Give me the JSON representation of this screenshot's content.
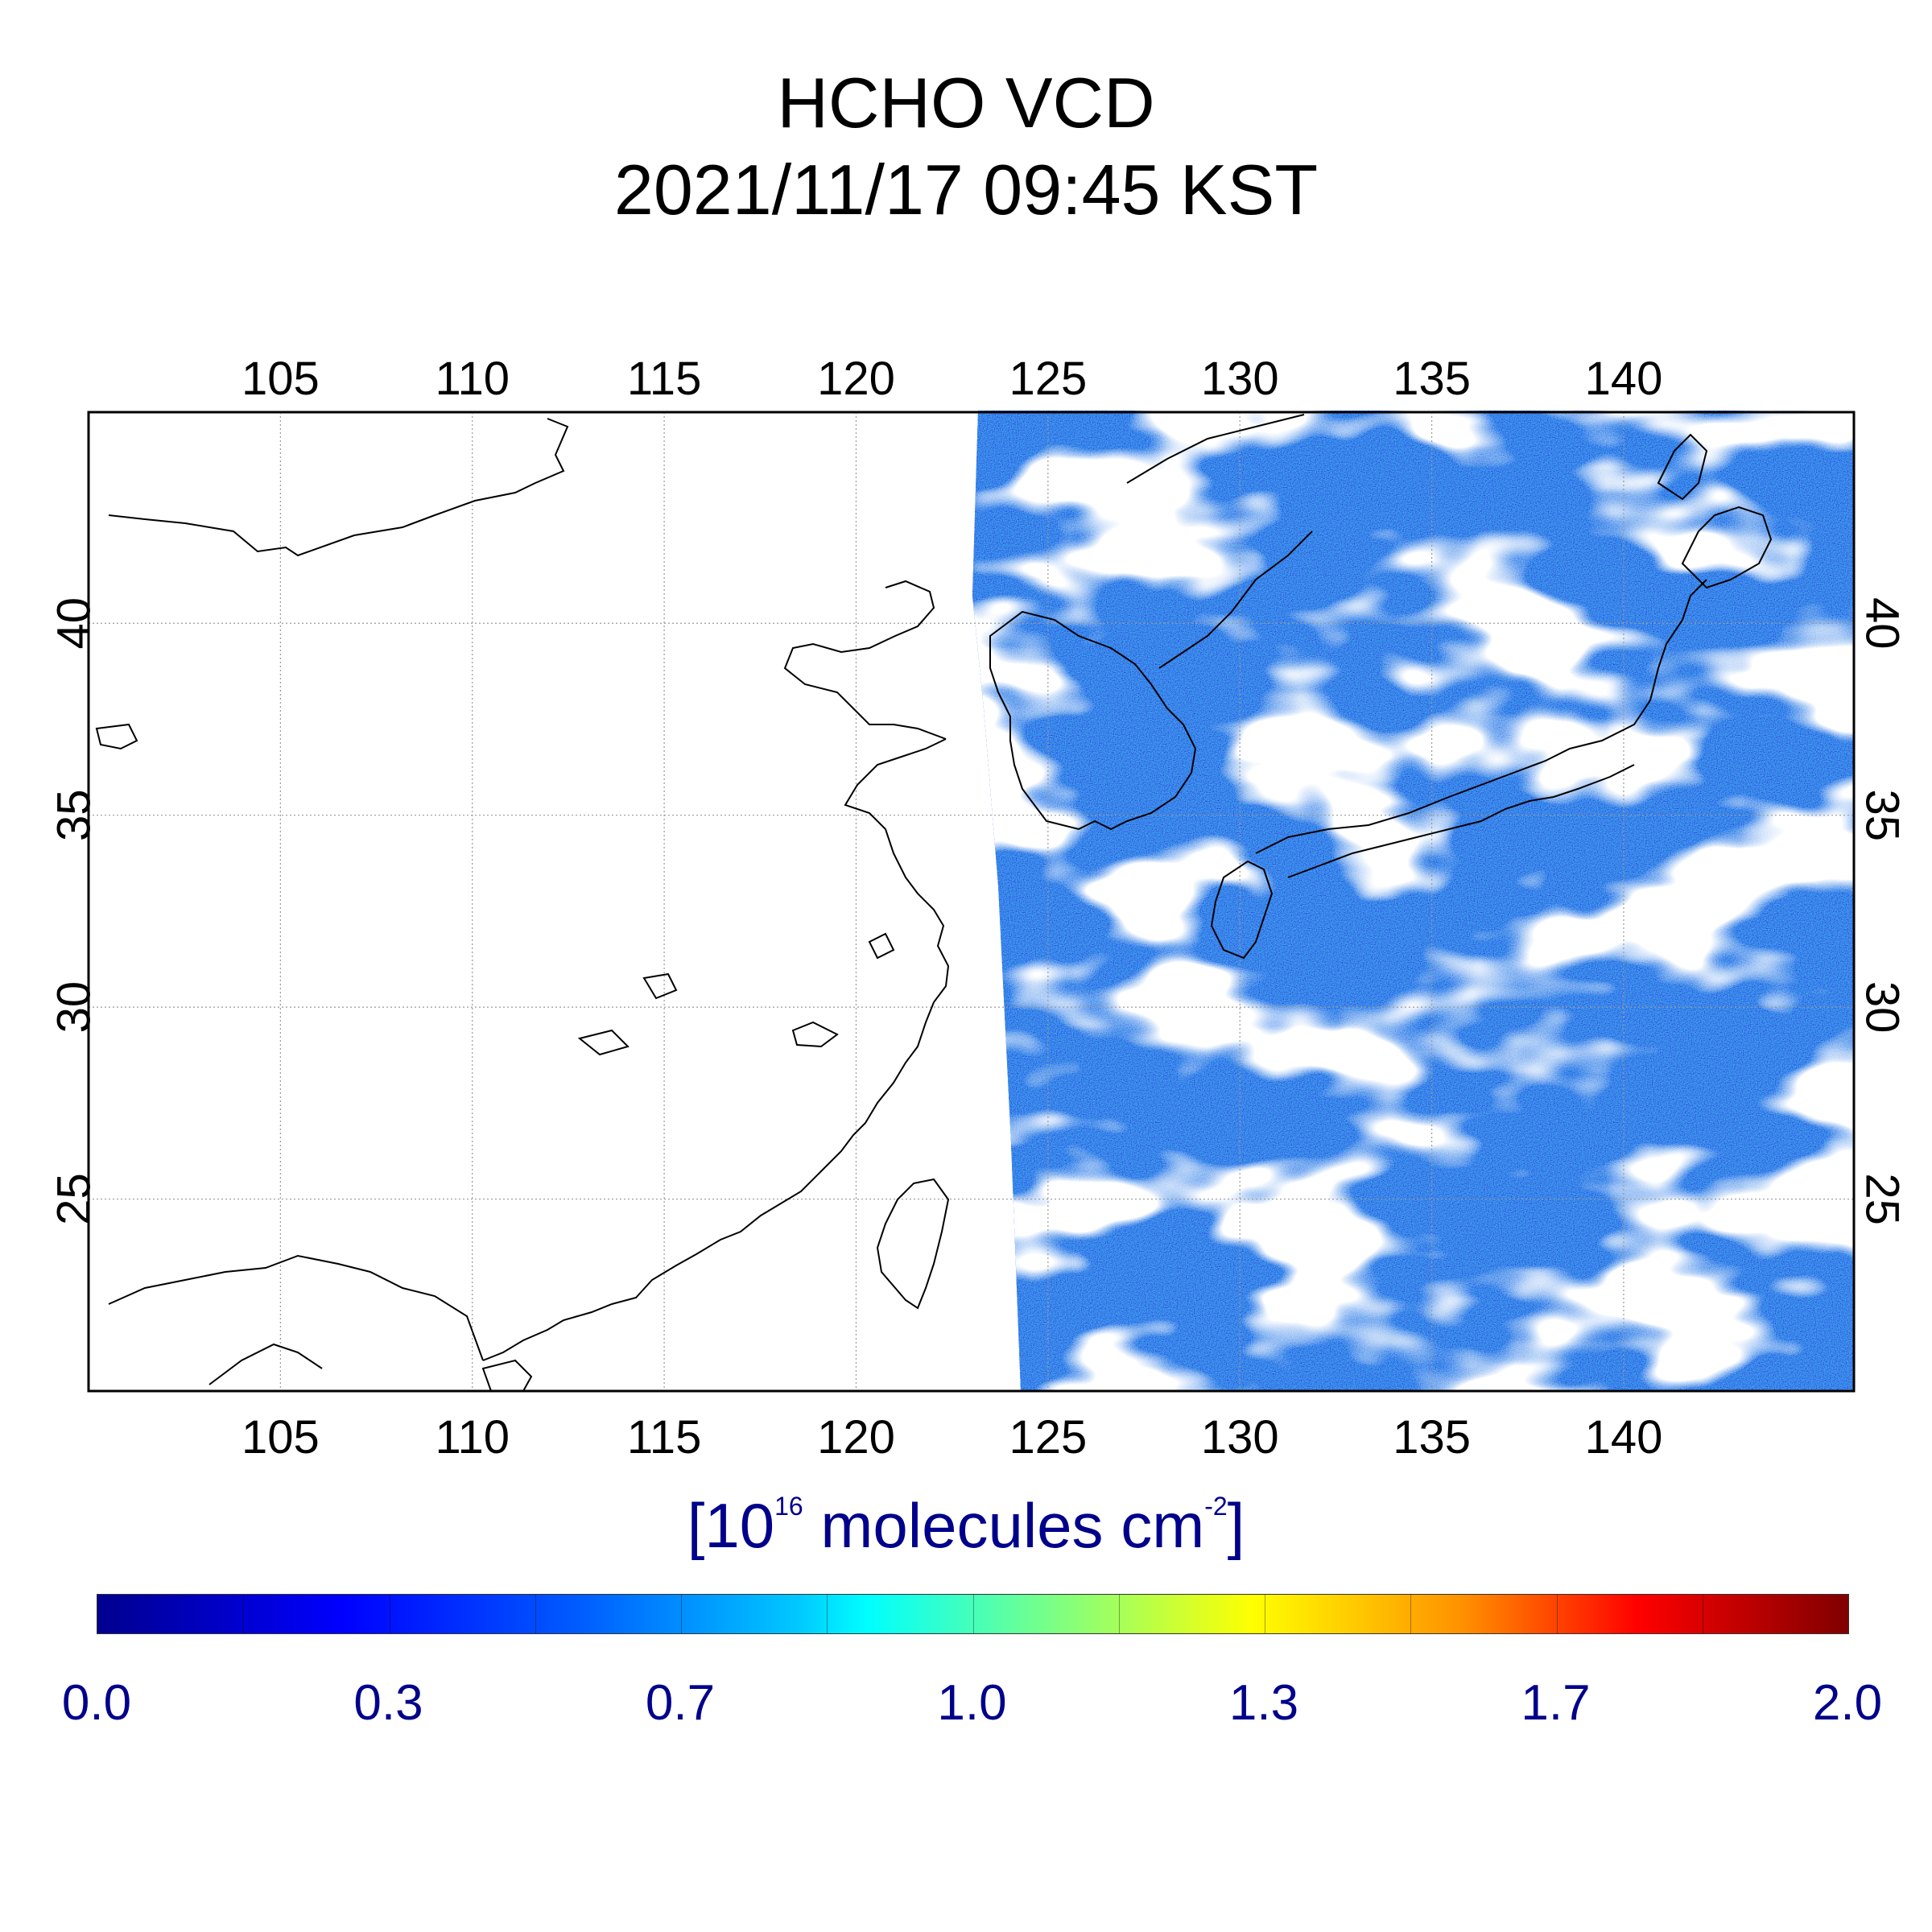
{
  "title": {
    "line1": "HCHO VCD",
    "line2": "2021/11/17 09:45 KST"
  },
  "map": {
    "lon_range": [
      100,
      146
    ],
    "lat_range": [
      20,
      45.5
    ],
    "lon_ticks": [
      "105",
      "110",
      "115",
      "120",
      "125",
      "130",
      "135",
      "140"
    ],
    "lat_ticks": [
      "40",
      "35",
      "30",
      "25"
    ],
    "grid": true,
    "data_coverage": "east of ~123E, swath with cloud gaps (white)"
  },
  "colorbar": {
    "unit_prefix": "[10",
    "unit_exp1": "16",
    "unit_mid": " molecules cm",
    "unit_exp2": "-2",
    "unit_suffix": "]",
    "ticks": [
      "0.0",
      "0.3",
      "0.7",
      "1.0",
      "1.3",
      "1.7",
      "2.0"
    ],
    "range": [
      0.0,
      2.0
    ],
    "colors": [
      "#00008f",
      "#0000ff",
      "#0060ff",
      "#00c8ff",
      "#00ffff",
      "#80ff80",
      "#ffff00",
      "#ff9000",
      "#ff0000",
      "#800000"
    ]
  }
}
